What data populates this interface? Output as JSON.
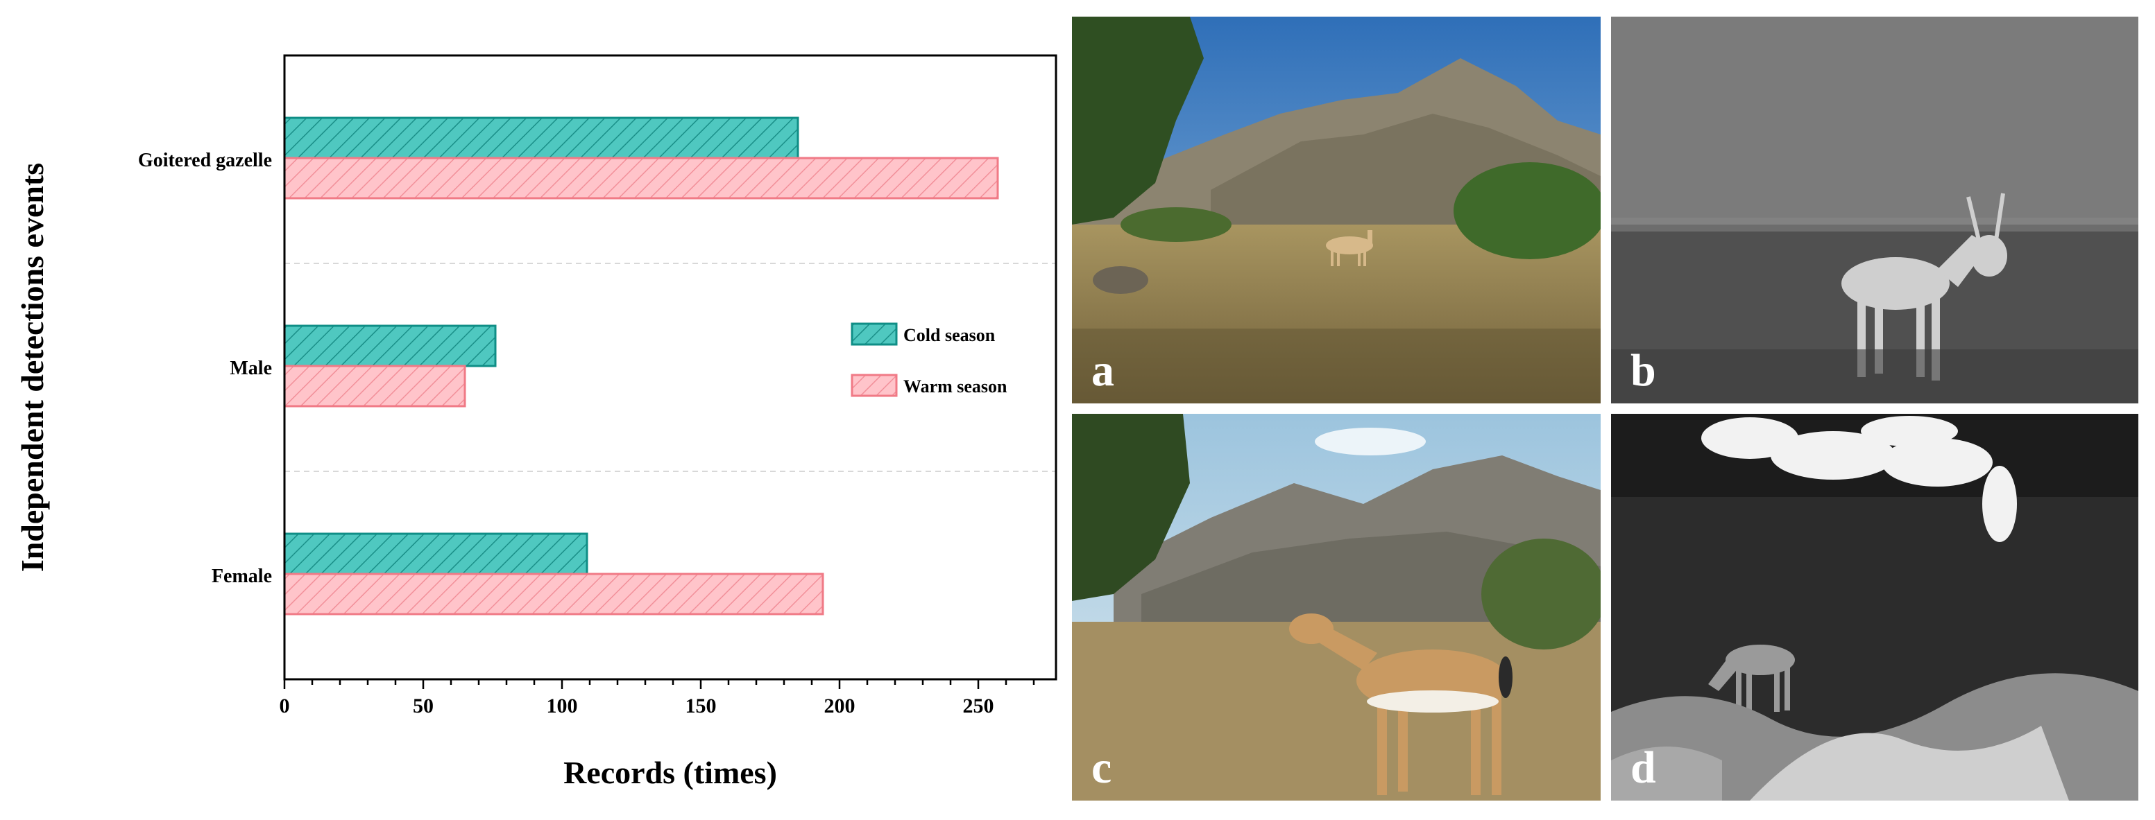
{
  "chart_data": {
    "type": "bar",
    "orientation": "horizontal",
    "categories": [
      "Goitered gazelle",
      "Male",
      "Female"
    ],
    "series": [
      {
        "name": "Cold season",
        "values": [
          185,
          76,
          109
        ],
        "color": "#4fc8c0",
        "edge": "#0f8e86"
      },
      {
        "name": "Warm season",
        "values": [
          257,
          65,
          194
        ],
        "color": "#ffbdc4",
        "edge": "#f07a86"
      }
    ],
    "xlabel": "Records (times)",
    "ylabel": "Independent detections events",
    "xlim": [
      0,
      280
    ],
    "xticks": [
      "0",
      "50",
      "100",
      "150",
      "200",
      "250"
    ],
    "legend": "right",
    "grid": "dashed separators between categories"
  },
  "photos": [
    {
      "label": "a",
      "desc": "gazelle in daylight"
    },
    {
      "label": "b",
      "desc": "male gazelle infrared night"
    },
    {
      "label": "c",
      "desc": "gazelle in daylight"
    },
    {
      "label": "d",
      "desc": "gazelle infrared night"
    }
  ]
}
